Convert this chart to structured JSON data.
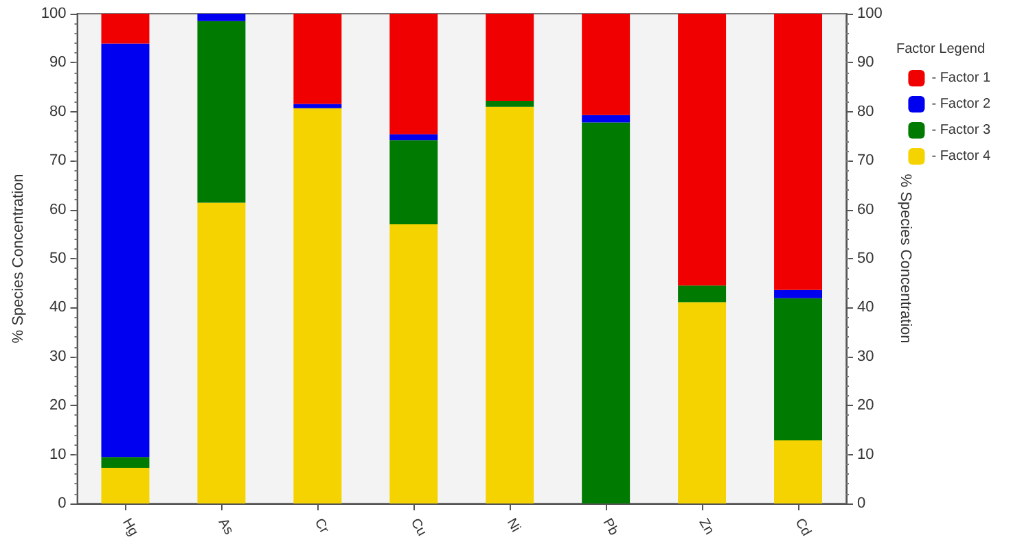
{
  "chart_data": {
    "type": "bar",
    "stacked": true,
    "categories": [
      "Hg",
      "As",
      "Cr",
      "Cu",
      "Ni",
      "Pb",
      "Zn",
      "Cd"
    ],
    "series": [
      {
        "name": "- Factor 4",
        "color": "#f5d300",
        "values": [
          7.3,
          61.4,
          80.7,
          57.0,
          81.0,
          0,
          41.1,
          12.9
        ]
      },
      {
        "name": "- Factor 3",
        "color": "#007a00",
        "values": [
          2.2,
          37.1,
          0,
          17.2,
          1.2,
          77.8,
          3.4,
          29.0
        ]
      },
      {
        "name": "- Factor 2",
        "color": "#0000f0",
        "values": [
          84.4,
          1.5,
          0.9,
          1.2,
          0,
          1.5,
          0,
          1.7
        ]
      },
      {
        "name": "- Factor 1",
        "color": "#f00000",
        "values": [
          6.1,
          0,
          18.4,
          24.6,
          17.8,
          20.7,
          55.5,
          56.4
        ]
      }
    ],
    "ylabel": "% Species Concentration",
    "y2label": "% Species Concentration",
    "ylim": [
      0,
      100
    ],
    "yticks": [
      0,
      10,
      20,
      30,
      40,
      50,
      60,
      70,
      80,
      90,
      100
    ],
    "y2lim": [
      0,
      100
    ],
    "y2ticks": [
      0,
      10,
      20,
      30,
      40,
      50,
      60,
      70,
      80,
      90,
      100
    ],
    "legend": "top right",
    "legend_title": "Factor Legend",
    "grid": false
  }
}
